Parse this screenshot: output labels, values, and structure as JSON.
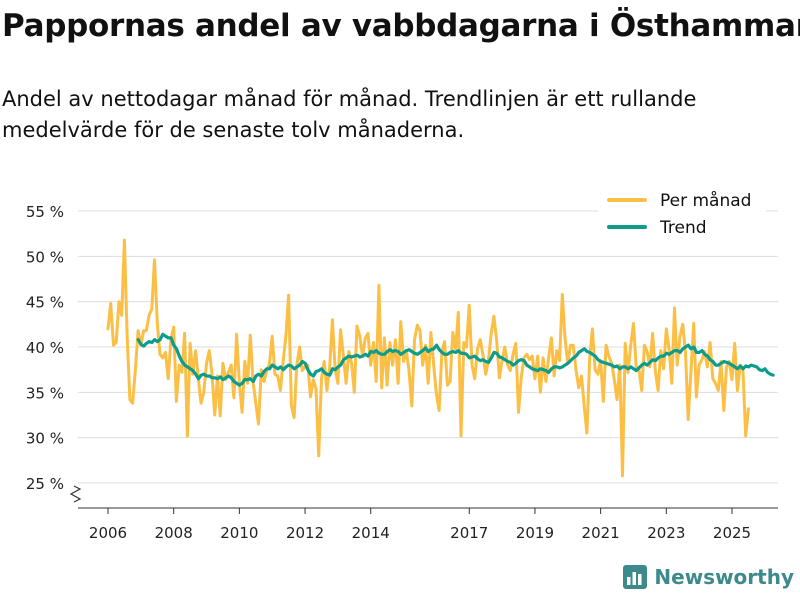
{
  "title": "Pappornas andel av vabbdagarna i Östhammar",
  "subtitle": "Andel av nettodagar månad för månad. Trendlinjen är ett rullande medelvärde för de senaste tolv månaderna.",
  "brand": {
    "name": "Newsworthy"
  },
  "colors": {
    "monthly": "#fbbf45",
    "trend": "#0b9c8c",
    "grid": "#dddddd",
    "axis": "#333333"
  },
  "chart_data": {
    "type": "line",
    "title": "Pappornas andel av vabbdagarna i Östhammar",
    "ylabel": "",
    "xlabel": "",
    "ylim": [
      22,
      56
    ],
    "xlim": [
      2005.5,
      2026.3
    ],
    "y_ticks": [
      {
        "value": 25,
        "label": "25 %"
      },
      {
        "value": 30,
        "label": "30 %"
      },
      {
        "value": 35,
        "label": "35 %"
      },
      {
        "value": 40,
        "label": "40 %"
      },
      {
        "value": 45,
        "label": "45 %"
      },
      {
        "value": 50,
        "label": "50 %"
      },
      {
        "value": 55,
        "label": "55 %"
      }
    ],
    "x_ticks": [
      {
        "value": 2006,
        "label": "2006"
      },
      {
        "value": 2008,
        "label": "2008"
      },
      {
        "value": 2010,
        "label": "2010"
      },
      {
        "value": 2012,
        "label": "2012"
      },
      {
        "value": 2014,
        "label": "2014"
      },
      {
        "value": 2017,
        "label": "2017"
      },
      {
        "value": 2019,
        "label": "2019"
      },
      {
        "value": 2021,
        "label": "2021"
      },
      {
        "value": 2023,
        "label": "2023"
      },
      {
        "value": 2025,
        "label": "2025"
      }
    ],
    "legend": {
      "placement": "top-right"
    },
    "series": [
      {
        "name": "Per månad",
        "start": 2006.0,
        "step": 0.08333,
        "values": [
          42.0,
          44.8,
          40.2,
          40.5,
          45.0,
          43.5,
          51.8,
          41.0,
          34.2,
          33.8,
          37.5,
          41.8,
          40.2,
          41.8,
          41.8,
          43.5,
          44.2,
          49.6,
          42.6,
          39.2,
          38.8,
          39.4,
          36.5,
          40.8,
          42.2,
          34.0,
          38.0,
          37.2,
          41.5,
          30.2,
          40.4,
          37.0,
          39.6,
          36.6,
          33.8,
          35.0,
          38.2,
          39.6,
          37.0,
          32.5,
          36.8,
          32.4,
          38.2,
          36.4,
          37.2,
          38.0,
          34.4,
          41.4,
          36.0,
          32.8,
          38.4,
          36.0,
          41.3,
          36.2,
          33.8,
          31.5,
          37.5,
          36.2,
          37.4,
          38.2,
          41.2,
          37.0,
          36.8,
          35.2,
          38.5,
          41.2,
          45.7,
          33.5,
          32.2,
          38.0,
          40.0,
          37.4,
          37.8,
          38.0,
          34.5,
          36.4,
          35.4,
          28.0,
          36.5,
          38.4,
          35.2,
          37.8,
          43.0,
          37.6,
          36.0,
          41.9,
          39.0,
          36.0,
          39.5,
          38.2,
          35.0,
          42.3,
          41.2,
          39.0,
          41.0,
          41.5,
          38.0,
          40.5,
          36.2,
          46.8,
          35.5,
          41.0,
          35.8,
          40.5,
          38.0,
          40.8,
          36.0,
          42.8,
          38.4,
          39.6,
          37.4,
          33.5,
          40.8,
          42.4,
          41.8,
          38.0,
          40.2,
          36.0,
          41.6,
          38.0,
          34.8,
          33.0,
          39.5,
          40.6,
          35.8,
          36.2,
          41.6,
          39.8,
          43.8,
          30.2,
          40.5,
          40.0,
          44.6,
          38.0,
          36.5,
          39.8,
          40.8,
          39.2,
          37.0,
          38.5,
          41.4,
          43.4,
          40.8,
          36.6,
          38.5,
          40.0,
          38.0,
          37.4,
          39.2,
          40.4,
          32.8,
          36.6,
          38.8,
          39.2,
          38.6,
          39.0,
          36.5,
          39.0,
          35.0,
          38.8,
          36.2,
          38.8,
          41.0,
          36.8,
          39.6,
          38.5,
          45.8,
          41.0,
          38.2,
          40.2,
          40.2,
          37.5,
          35.5,
          36.8,
          33.5,
          30.5,
          38.8,
          42.0,
          37.5,
          37.0,
          38.5,
          34.0,
          40.2,
          39.0,
          38.2,
          36.4,
          34.2,
          38.0,
          25.8,
          40.4,
          37.2,
          40.2,
          42.6,
          37.8,
          37.6,
          35.2,
          40.2,
          39.5,
          37.8,
          41.5,
          37.4,
          35.2,
          39.6,
          37.6,
          42.0,
          39.8,
          36.0,
          44.3,
          38.0,
          41.2,
          42.5,
          39.4,
          32.0,
          37.2,
          42.6,
          34.5,
          38.0,
          38.6,
          39.5,
          37.8,
          40.5,
          36.5,
          36.0,
          35.2,
          38.4,
          33.0,
          37.8,
          38.4,
          36.4,
          40.4,
          35.2,
          38.0,
          37.6,
          30.2,
          33.2
        ]
      },
      {
        "name": "Trend",
        "start": 2006.92,
        "step": 0.08333,
        "values": [
          40.8,
          40.3,
          40.1,
          40.4,
          40.6,
          40.5,
          40.8,
          40.6,
          40.8,
          41.4,
          41.2,
          41.0,
          41.0,
          40.2,
          39.8,
          39.0,
          38.4,
          38.0,
          37.8,
          37.6,
          37.4,
          37.0,
          36.5,
          36.9,
          37.0,
          36.8,
          36.8,
          36.6,
          36.6,
          36.5,
          36.7,
          36.4,
          36.6,
          36.8,
          36.6,
          36.2,
          36.0,
          35.8,
          36.0,
          36.4,
          36.4,
          36.5,
          36.2,
          36.8,
          37.0,
          36.8,
          37.3,
          37.6,
          37.6,
          38.0,
          37.8,
          37.6,
          37.8,
          37.5,
          37.8,
          38.0,
          37.9,
          37.6,
          37.8,
          38.0,
          38.4,
          38.2,
          37.5,
          37.0,
          36.8,
          37.3,
          37.4,
          37.6,
          37.2,
          37.0,
          36.9,
          37.6,
          37.5,
          37.8,
          38.0,
          38.6,
          38.8,
          39.0,
          38.9,
          39.0,
          39.1,
          38.9,
          39.0,
          39.2,
          39.0,
          39.5,
          39.4,
          39.6,
          39.3,
          39.2,
          39.2,
          39.5,
          39.7,
          39.5,
          39.6,
          39.5,
          39.2,
          39.4,
          39.6,
          39.7,
          39.5,
          39.3,
          39.2,
          39.4,
          39.6,
          39.9,
          39.5,
          39.7,
          39.8,
          40.2,
          39.7,
          39.4,
          39.2,
          39.2,
          39.4,
          39.5,
          39.4,
          39.6,
          39.3,
          39.3,
          39.2,
          38.8,
          38.9,
          39.0,
          38.7,
          38.5,
          38.6,
          38.4,
          38.3,
          38.8,
          39.4,
          39.3,
          38.9,
          38.8,
          38.6,
          38.4,
          38.3,
          38.0,
          38.2,
          38.5,
          38.6,
          38.5,
          38.0,
          37.8,
          37.6,
          37.5,
          37.4,
          37.6,
          37.5,
          37.4,
          37.2,
          37.6,
          37.8,
          37.8,
          37.7,
          37.8,
          38.0,
          38.2,
          38.5,
          38.8,
          39.0,
          39.4,
          39.6,
          39.8,
          39.5,
          39.4,
          39.2,
          39.0,
          38.6,
          38.4,
          38.3,
          38.2,
          38.1,
          38.0,
          37.8,
          37.9,
          37.6,
          37.8,
          37.8,
          37.6,
          37.8,
          37.6,
          37.4,
          37.7,
          38.0,
          38.2,
          38.0,
          38.3,
          38.6,
          38.5,
          38.8,
          39.0,
          39.0,
          39.3,
          39.2,
          39.4,
          39.6,
          39.6,
          39.4,
          39.8,
          40.0,
          40.2,
          39.8,
          40.0,
          39.4,
          39.4,
          39.6,
          39.2,
          39.0,
          38.6,
          38.4,
          38.0,
          38.0,
          38.2,
          38.4,
          38.3,
          38.2,
          38.0,
          37.8,
          37.6,
          37.9,
          37.6,
          37.9,
          37.8,
          38.0,
          37.9,
          37.8,
          37.5,
          37.4,
          37.6,
          37.2,
          37.0,
          36.9
        ]
      }
    ]
  }
}
